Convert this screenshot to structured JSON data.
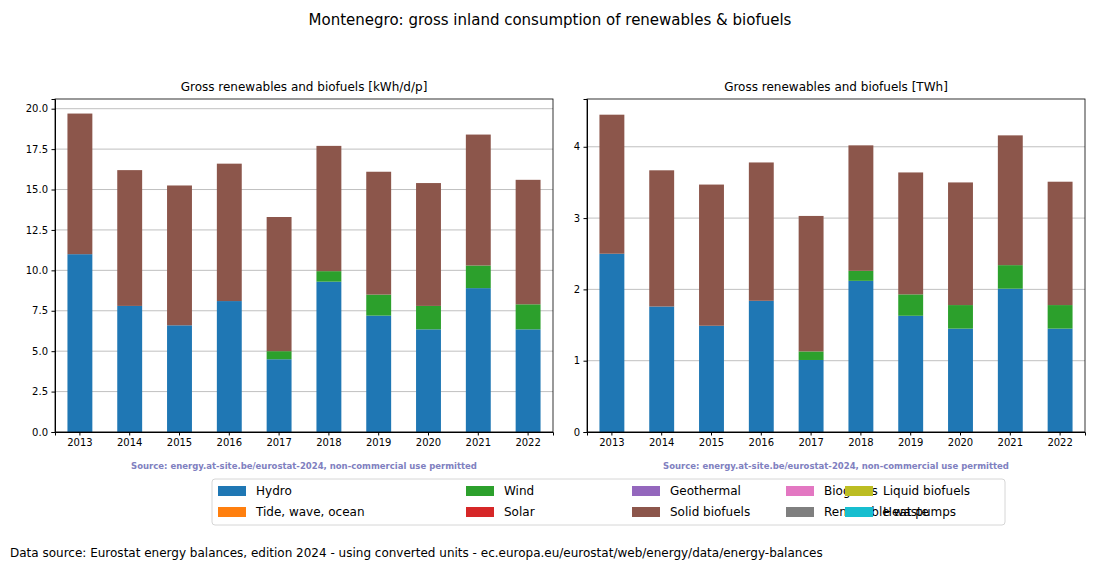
{
  "suptitle": "Montenegro: gross inland consumption of renewables & biofuels",
  "footnote": "Data source: Eurostat energy balances, edition 2024 - using converted units - ec.europa.eu/eurostat/web/energy/data/energy-balances",
  "chart_data": [
    {
      "type": "bar",
      "title": "Gross renewables and biofuels [kWh/d/p]",
      "source": "Source: energy.at-site.be/eurostat-2024, non-commercial use permitted",
      "stacked": true,
      "grid": true,
      "legend": "bottom",
      "categories": [
        "2013",
        "2014",
        "2015",
        "2016",
        "2017",
        "2018",
        "2019",
        "2020",
        "2021",
        "2022"
      ],
      "ylim": [
        0,
        20.6
      ],
      "yticks": [
        {
          "value": 0,
          "label": "0.0"
        },
        2.5,
        {
          "value": 5,
          "label": "5.0"
        },
        7.5,
        {
          "value": 10,
          "label": "10.0"
        },
        12.5,
        {
          "value": 15,
          "label": "15.0"
        },
        17.5,
        {
          "value": 20,
          "label": "20.0"
        }
      ],
      "series": [
        {
          "name": "Hydro",
          "color": "#1f77b4",
          "values": [
            11.0,
            7.8,
            6.6,
            8.1,
            4.5,
            9.3,
            7.2,
            6.35,
            8.9,
            6.35
          ]
        },
        {
          "name": "Tide, wave, ocean",
          "color": "#ff7f0e",
          "values": [
            0,
            0,
            0,
            0,
            0,
            0,
            0,
            0,
            0,
            0
          ]
        },
        {
          "name": "Wind",
          "color": "#2ca02c",
          "values": [
            0,
            0,
            0,
            0,
            0.5,
            0.65,
            1.3,
            1.45,
            1.4,
            1.55
          ]
        },
        {
          "name": "Solar",
          "color": "#d62728",
          "values": [
            0,
            0,
            0,
            0,
            0,
            0,
            0,
            0,
            0,
            0
          ]
        },
        {
          "name": "Geothermal",
          "color": "#9467bd",
          "values": [
            0,
            0,
            0,
            0,
            0,
            0,
            0,
            0,
            0,
            0
          ]
        },
        {
          "name": "Solid biofuels",
          "color": "#8c564b",
          "values": [
            8.7,
            8.4,
            8.65,
            8.5,
            8.3,
            7.75,
            7.6,
            7.6,
            8.1,
            7.7
          ]
        },
        {
          "name": "Biogases",
          "color": "#e377c2",
          "values": [
            0,
            0,
            0,
            0,
            0,
            0,
            0,
            0,
            0,
            0
          ]
        },
        {
          "name": "Renewable waste",
          "color": "#7f7f7f",
          "values": [
            0,
            0,
            0,
            0,
            0,
            0,
            0,
            0,
            0,
            0
          ]
        },
        {
          "name": "Liquid biofuels",
          "color": "#bcbd22",
          "values": [
            0,
            0,
            0,
            0,
            0,
            0,
            0,
            0,
            0,
            0
          ]
        },
        {
          "name": "Heat pumps",
          "color": "#17becf",
          "values": [
            0,
            0,
            0,
            0,
            0,
            0,
            0,
            0,
            0,
            0
          ]
        }
      ]
    },
    {
      "type": "bar",
      "title": "Gross renewables and biofuels [TWh]",
      "source": "Source: energy.at-site.be/eurostat-2024, non-commercial use permitted",
      "stacked": true,
      "grid": true,
      "categories": [
        "2013",
        "2014",
        "2015",
        "2016",
        "2017",
        "2018",
        "2019",
        "2020",
        "2021",
        "2022"
      ],
      "ylim": [
        0,
        4.67
      ],
      "yticks": [
        0,
        1,
        2,
        3,
        4
      ],
      "series": [
        {
          "name": "Hydro",
          "color": "#1f77b4",
          "values": [
            2.5,
            1.76,
            1.49,
            1.84,
            1.01,
            2.12,
            1.63,
            1.45,
            2.01,
            1.45
          ]
        },
        {
          "name": "Tide, wave, ocean",
          "color": "#ff7f0e",
          "values": [
            0,
            0,
            0,
            0,
            0,
            0,
            0,
            0,
            0,
            0
          ]
        },
        {
          "name": "Wind",
          "color": "#2ca02c",
          "values": [
            0,
            0,
            0,
            0,
            0.12,
            0.14,
            0.3,
            0.33,
            0.33,
            0.33
          ]
        },
        {
          "name": "Solar",
          "color": "#d62728",
          "values": [
            0,
            0,
            0,
            0,
            0,
            0,
            0,
            0,
            0,
            0
          ]
        },
        {
          "name": "Geothermal",
          "color": "#9467bd",
          "values": [
            0,
            0,
            0,
            0,
            0,
            0,
            0,
            0,
            0,
            0
          ]
        },
        {
          "name": "Solid biofuels",
          "color": "#8c564b",
          "values": [
            1.95,
            1.91,
            1.98,
            1.94,
            1.9,
            1.76,
            1.71,
            1.72,
            1.82,
            1.73
          ]
        },
        {
          "name": "Biogases",
          "color": "#e377c2",
          "values": [
            0,
            0,
            0,
            0,
            0,
            0,
            0,
            0,
            0,
            0
          ]
        },
        {
          "name": "Renewable waste",
          "color": "#7f7f7f",
          "values": [
            0,
            0,
            0,
            0,
            0,
            0,
            0,
            0,
            0,
            0
          ]
        },
        {
          "name": "Liquid biofuels",
          "color": "#bcbd22",
          "values": [
            0,
            0,
            0,
            0,
            0,
            0,
            0,
            0,
            0,
            0
          ]
        },
        {
          "name": "Heat pumps",
          "color": "#17becf",
          "values": [
            0,
            0,
            0,
            0,
            0,
            0,
            0,
            0,
            0,
            0
          ]
        }
      ]
    }
  ]
}
